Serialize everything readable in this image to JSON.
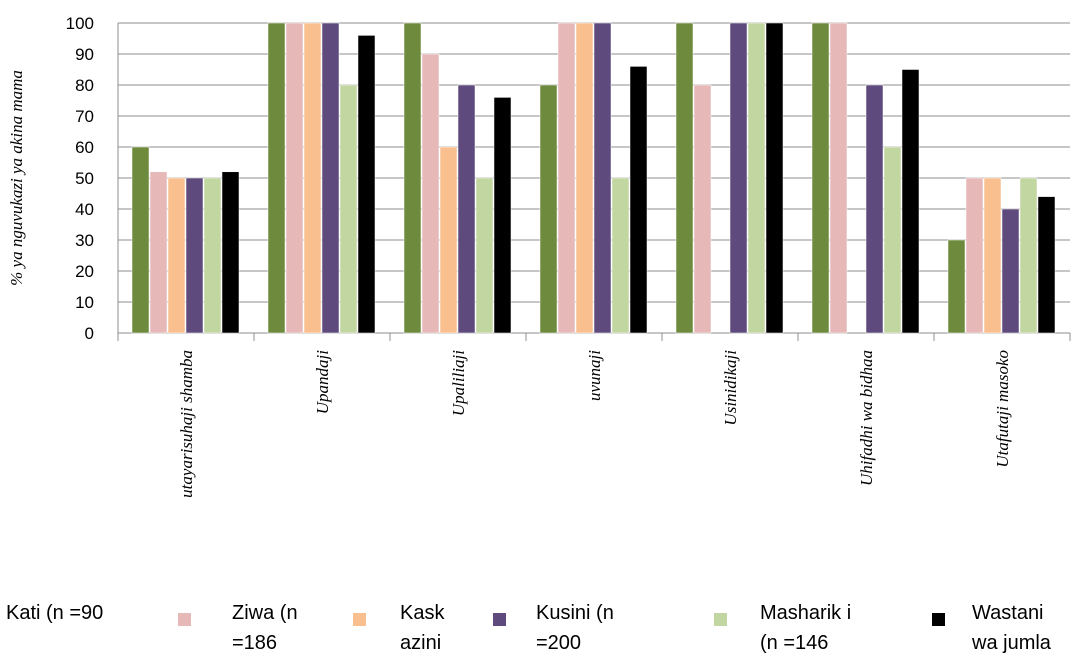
{
  "chart_data": {
    "type": "bar",
    "ylabel": "% ya nguvukazi ya akina mama",
    "ylim": [
      0,
      100
    ],
    "yticks": [
      "0",
      "10",
      "20",
      "30",
      "40",
      "50",
      "60",
      "70",
      "80",
      "90",
      "100"
    ],
    "grid": true,
    "legend_position": "bottom",
    "categories": [
      "utayarisuhaji shamba",
      "Upandaji",
      "Upaliliaji",
      "uvunaji",
      "Usinidikaji",
      "Uhifadhi wa bidhaa",
      "Utafutaji masoko"
    ],
    "series": [
      {
        "name": "Kati (n =90",
        "color": "#6e8a3c",
        "values": [
          60,
          100,
          100,
          80,
          100,
          100,
          30
        ]
      },
      {
        "name": "Ziwa (n =186",
        "color": "#e6b8b8",
        "values": [
          52,
          100,
          90,
          100,
          80,
          100,
          50
        ]
      },
      {
        "name": "Kask azini",
        "color": "#f9bf8f",
        "values": [
          50,
          100,
          60,
          100,
          0,
          0,
          50
        ]
      },
      {
        "name": "Kusini (n =200",
        "color": "#5f4a7e",
        "values": [
          50,
          100,
          80,
          100,
          100,
          80,
          40
        ]
      },
      {
        "name": "Masharik i (n =146",
        "color": "#c2d6a2",
        "values": [
          50,
          80,
          50,
          50,
          100,
          60,
          50
        ]
      },
      {
        "name": "Wastani wa jumla",
        "color": "#000000",
        "values": [
          52,
          96,
          76,
          86,
          100,
          85,
          44
        ]
      }
    ]
  },
  "legend": [
    {
      "line1": "Kati (n =90",
      "line2": ""
    },
    {
      "line1": "Ziwa (n",
      "line2": "=186"
    },
    {
      "line1": "Kask",
      "line2": "azini"
    },
    {
      "line1": "Kusini (n",
      "line2": "=200"
    },
    {
      "line1": "Masharik i",
      "line2": "(n =146"
    },
    {
      "line1": "Wastani",
      "line2": "wa  jumla"
    }
  ]
}
